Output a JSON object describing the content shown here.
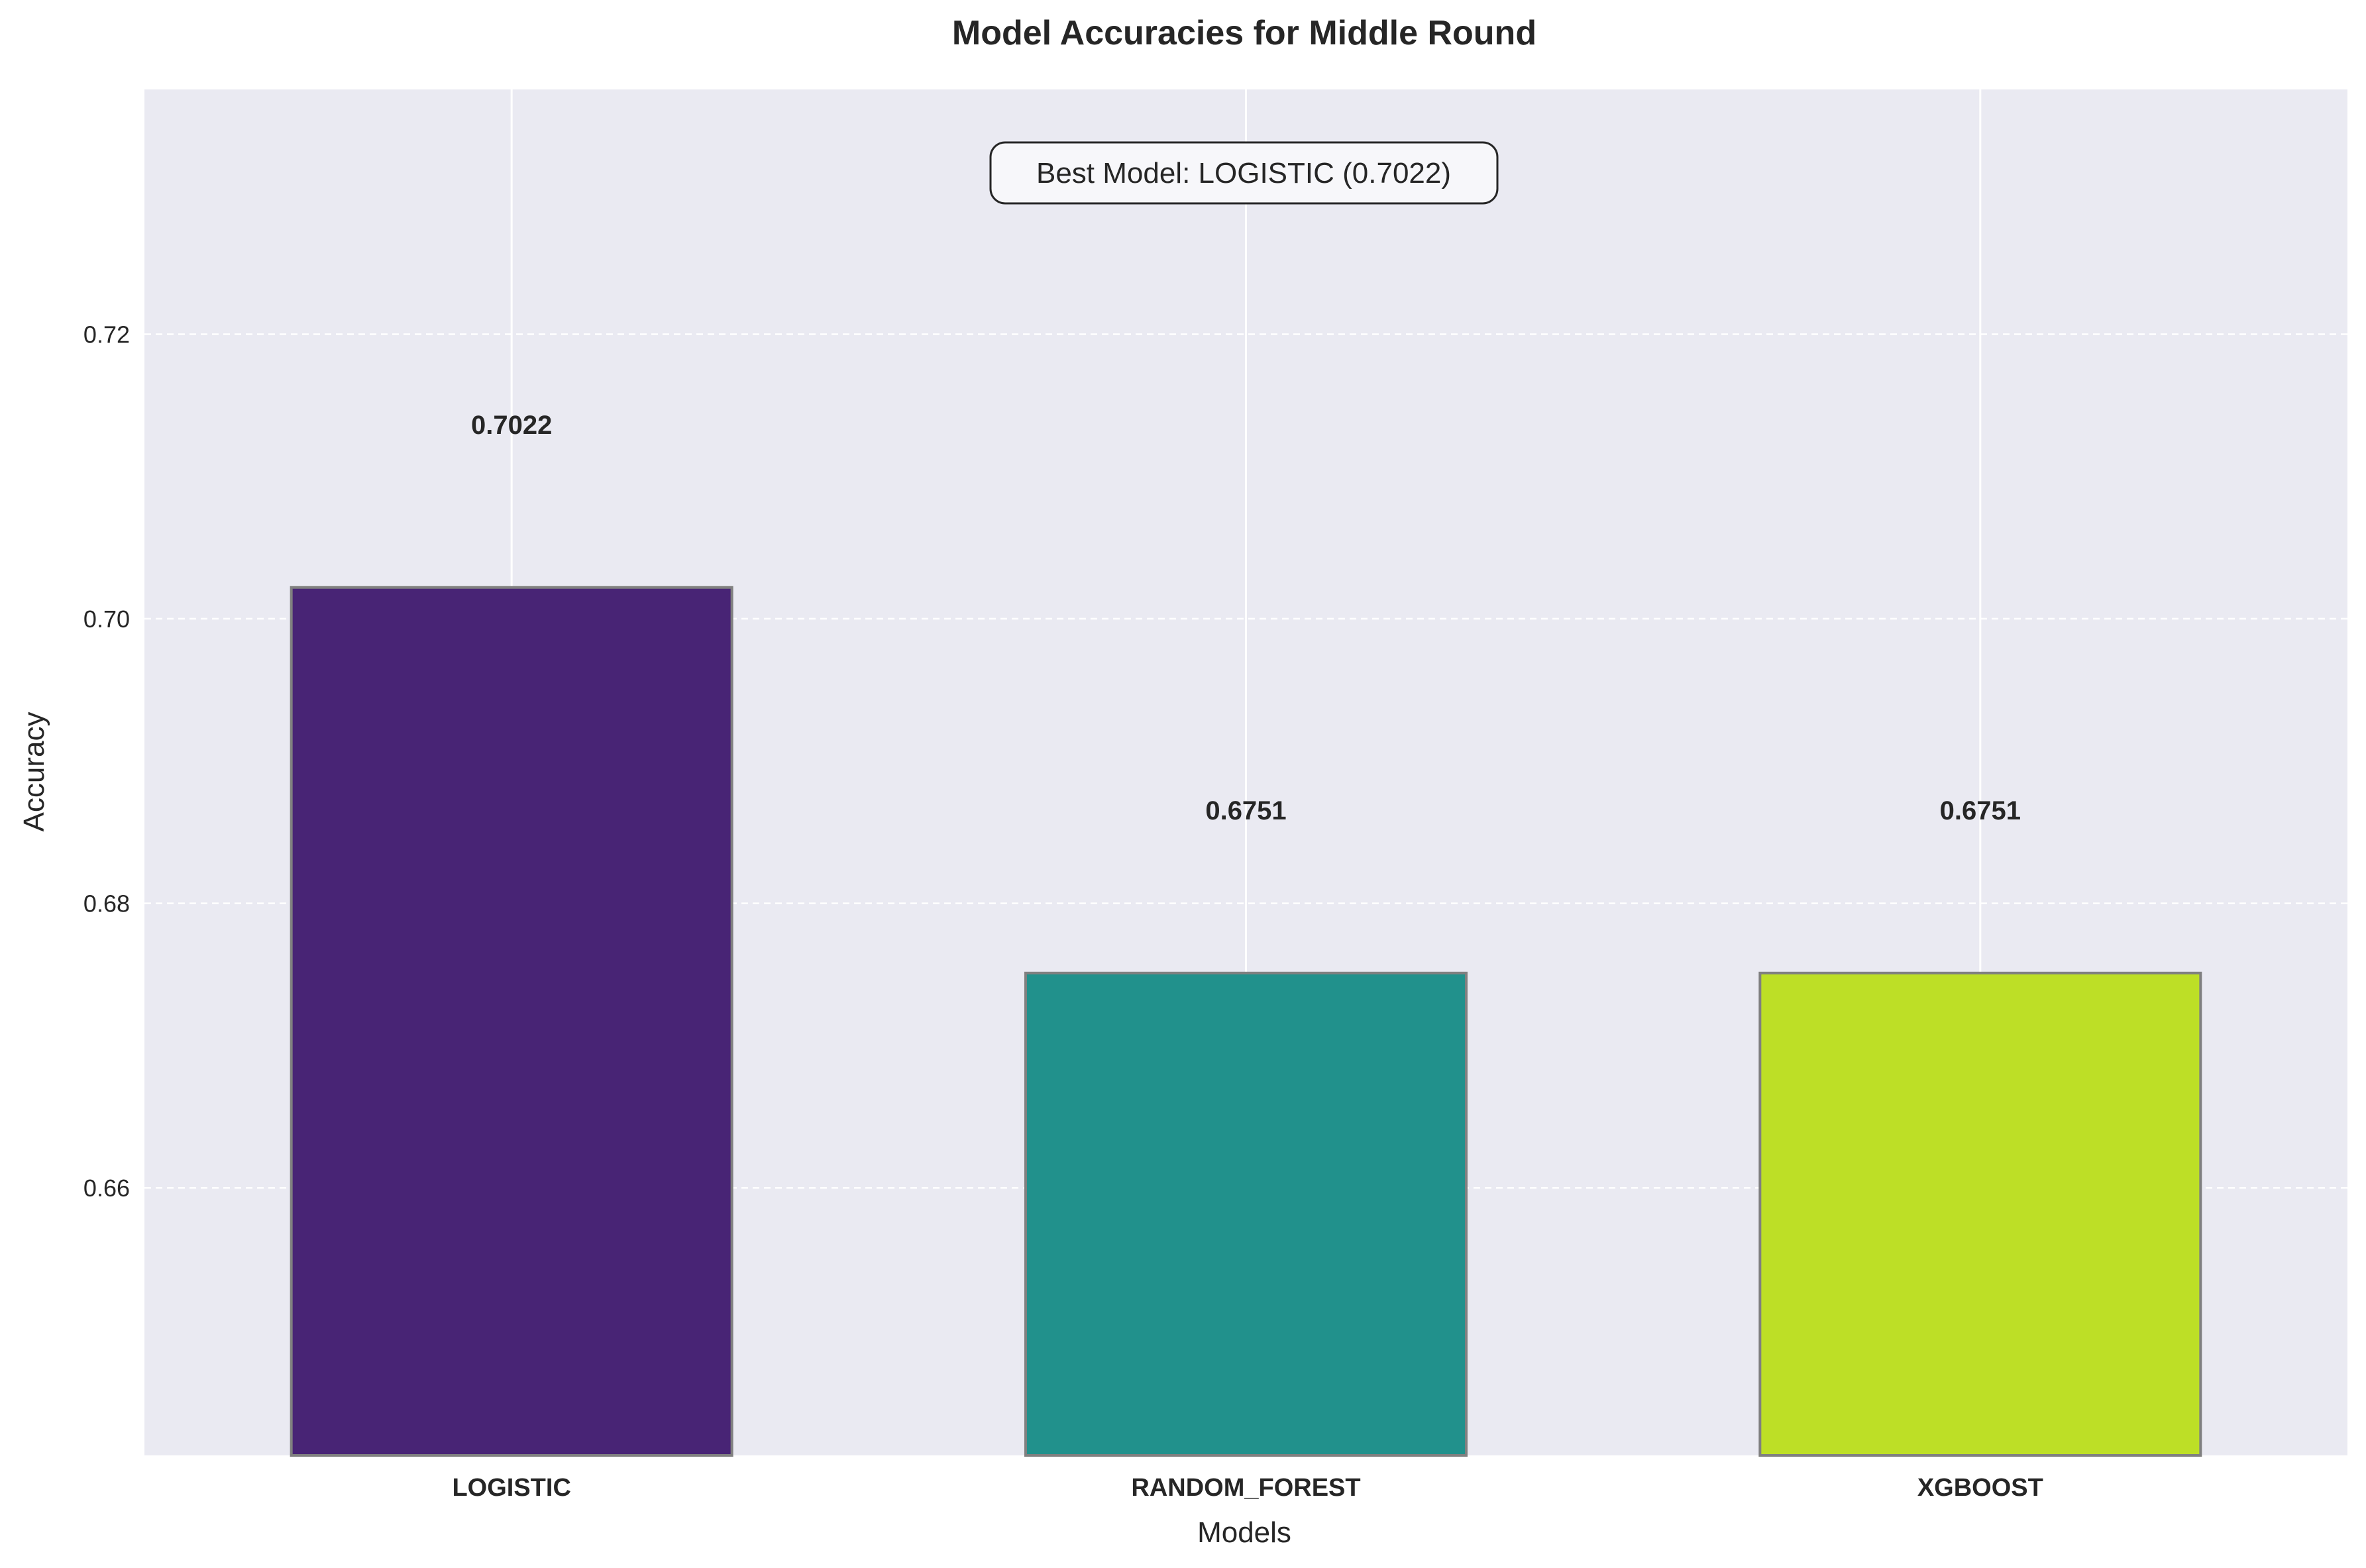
{
  "chart_data": {
    "type": "bar",
    "title": "Model Accuracies for Middle Round",
    "xlabel": "Models",
    "ylabel": "Accuracy",
    "categories": [
      "LOGISTIC",
      "RANDOM_FOREST",
      "XGBOOST"
    ],
    "values": [
      0.7022,
      0.6751,
      0.6751
    ],
    "value_labels": [
      "0.7022",
      "0.6751",
      "0.6751"
    ],
    "bar_colors": [
      "#482475",
      "#21918c",
      "#bddf26"
    ],
    "ylim": [
      0.6412,
      0.7372
    ],
    "yticks": [
      0.66,
      0.68,
      0.7,
      0.72
    ],
    "ytick_labels": [
      "0.66",
      "0.68",
      "0.70",
      "0.72"
    ],
    "grid": true,
    "annotation": "Best Model: LOGISTIC (0.7022)",
    "colors": {
      "plot_background": "#eaeaf2",
      "grid": "#ffffff",
      "bar_edge": "#808080",
      "text": "#262626"
    }
  }
}
